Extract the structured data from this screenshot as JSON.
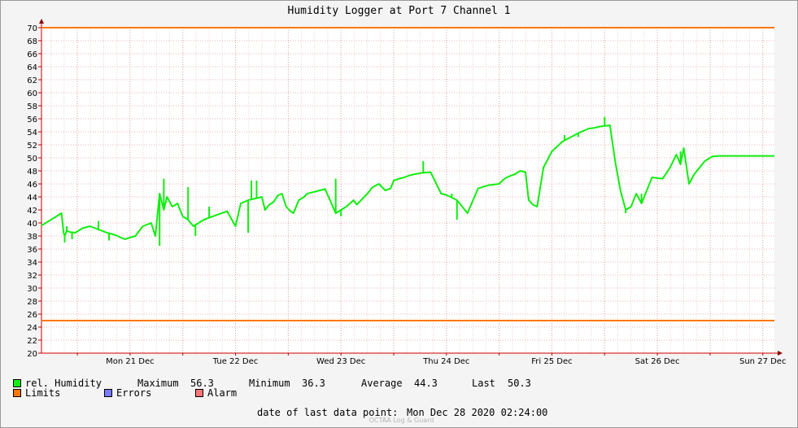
{
  "chart_data": {
    "type": "line",
    "title": "Humidity Logger at Port 7 Channel 1",
    "x_tick_labels": [
      "Mon 21 Dec",
      "Tue 22 Dec",
      "Wed 23 Dec",
      "Thu 24 Dec",
      "Fri 25 Dec",
      "Sat 26 Dec",
      "Sun 27 Dec"
    ],
    "y_range": [
      20,
      70
    ],
    "y_tick_step": 2,
    "x_range_days": [
      -0.34,
      6.61
    ],
    "grid": true,
    "limits": {
      "upper": 70,
      "lower": 25
    },
    "series": [
      {
        "name": "rel. Humidity",
        "color": "#11ee11",
        "x_days_since_mon_21_dec": [
          -0.34,
          -0.25,
          -0.15,
          -0.13,
          -0.12,
          -0.1,
          -0.07,
          -0.02,
          0.05,
          0.12,
          0.2,
          0.28,
          0.35,
          0.45,
          0.55,
          0.62,
          0.7,
          0.74,
          0.78,
          0.82,
          0.85,
          0.9,
          0.95,
          1.0,
          1.05,
          1.1,
          1.15,
          1.2,
          1.25,
          1.35,
          1.42,
          1.5,
          1.55,
          1.62,
          1.7,
          1.75,
          1.78,
          1.82,
          1.86,
          1.9,
          1.94,
          1.98,
          2.02,
          2.05,
          2.1,
          2.15,
          2.18,
          2.25,
          2.35,
          2.45,
          2.55,
          2.62,
          2.65,
          2.75,
          2.8,
          2.86,
          2.92,
          2.97,
          3.0,
          3.05,
          3.1,
          3.15,
          3.2,
          3.27,
          3.35,
          3.45,
          3.5,
          3.6,
          3.7,
          3.8,
          3.9,
          4.0,
          4.05,
          4.1,
          4.15,
          4.2,
          4.25,
          4.28,
          4.32,
          4.36,
          4.42,
          4.5,
          4.6,
          4.75,
          4.85,
          4.9,
          4.95,
          5.05,
          5.1,
          5.15,
          5.2,
          5.25,
          5.3,
          5.35,
          5.45,
          5.55,
          5.62,
          5.68,
          5.72,
          5.75,
          5.8,
          5.85,
          5.9,
          5.95,
          6.02,
          6.08,
          6.15,
          6.2,
          6.26,
          6.3,
          6.35,
          6.4,
          6.45,
          6.52,
          6.57,
          6.61
        ],
        "y": [
          39.6,
          40.5,
          41.5,
          38.5,
          38.0,
          38.8,
          38.6,
          38.5,
          39.2,
          39.5,
          39.0,
          38.5,
          38.2,
          37.5,
          38.0,
          39.5,
          40.0,
          38.0,
          44.5,
          42.0,
          44.0,
          42.5,
          43.0,
          41.0,
          40.5,
          39.5,
          40.0,
          40.5,
          40.8,
          41.4,
          41.8,
          39.5,
          43.0,
          43.5,
          43.8,
          44.0,
          42.0,
          42.8,
          43.2,
          44.2,
          44.5,
          42.5,
          41.8,
          41.5,
          43.5,
          44.0,
          44.5,
          44.8,
          45.2,
          41.5,
          42.5,
          43.5,
          42.8,
          44.5,
          45.5,
          46.0,
          45.0,
          45.3,
          46.5,
          46.8,
          47.0,
          47.3,
          47.5,
          47.7,
          47.8,
          44.5,
          44.3,
          43.5,
          41.5,
          45.3,
          45.8,
          46.0,
          46.8,
          47.2,
          47.5,
          48.0,
          47.8,
          43.5,
          42.8,
          42.5,
          48.5,
          51.0,
          52.5,
          53.8,
          54.5,
          54.6,
          54.8,
          55.0,
          49.5,
          45.0,
          42.0,
          42.5,
          44.5,
          43.0,
          47.0,
          46.8,
          48.5,
          50.5,
          49.0,
          51.5,
          46.0,
          47.5,
          48.5,
          49.5,
          50.2,
          50.3,
          50.3,
          50.3,
          50.3,
          50.3,
          50.3,
          50.3,
          50.3,
          50.3,
          50.3,
          50.3
        ]
      },
      {
        "name": "Limits",
        "color": "#ff7700",
        "values": [
          70,
          25
        ]
      }
    ],
    "noise_points": [
      [
        -0.12,
        37.0
      ],
      [
        -0.1,
        39.5
      ],
      [
        -0.05,
        37.5
      ],
      [
        0.2,
        40.3
      ],
      [
        0.3,
        37.3
      ],
      [
        0.78,
        36.5
      ],
      [
        0.82,
        46.8
      ],
      [
        1.05,
        45.5
      ],
      [
        1.12,
        38.0
      ],
      [
        1.25,
        42.5
      ],
      [
        1.62,
        38.5
      ],
      [
        1.65,
        46.5
      ],
      [
        1.7,
        46.5
      ],
      [
        2.45,
        46.8
      ],
      [
        2.5,
        41.0
      ],
      [
        3.27,
        47.7
      ],
      [
        3.28,
        49.5
      ],
      [
        3.55,
        44.5
      ],
      [
        3.6,
        40.5
      ],
      [
        4.28,
        44.0
      ],
      [
        4.62,
        53.5
      ],
      [
        4.75,
        53.2
      ],
      [
        5.0,
        56.3
      ],
      [
        5.2,
        41.5
      ],
      [
        5.35,
        44.5
      ],
      [
        5.72,
        51.0
      ]
    ],
    "stats": [
      {
        "label": "Maximum",
        "value": "56.3"
      },
      {
        "label": "Minimum",
        "value": "36.3"
      },
      {
        "label": "Average",
        "value": "44.3"
      },
      {
        "label": "Last",
        "value": "50.3"
      }
    ]
  },
  "legend": {
    "humidity": "rel. Humidity",
    "limits": "Limits",
    "errors": "Errors",
    "alarm": "Alarm",
    "colors": {
      "humidity": "#11ee11",
      "limits": "#ff7700",
      "errors": "#7b7bff",
      "alarm": "#ff7777"
    }
  },
  "stats": {
    "max_label": "Maximum",
    "max_value": "56.3",
    "min_label": "Minimum",
    "min_value": "36.3",
    "avg_label": "Average",
    "avg_value": "44.3",
    "last_label": "Last",
    "last_value": "50.3"
  },
  "footer": {
    "last_point_label": "date of last data point:",
    "last_point_value": "Mon Dec 28 2020 02:24:00",
    "credit": "OCTAA Log & Guard"
  }
}
